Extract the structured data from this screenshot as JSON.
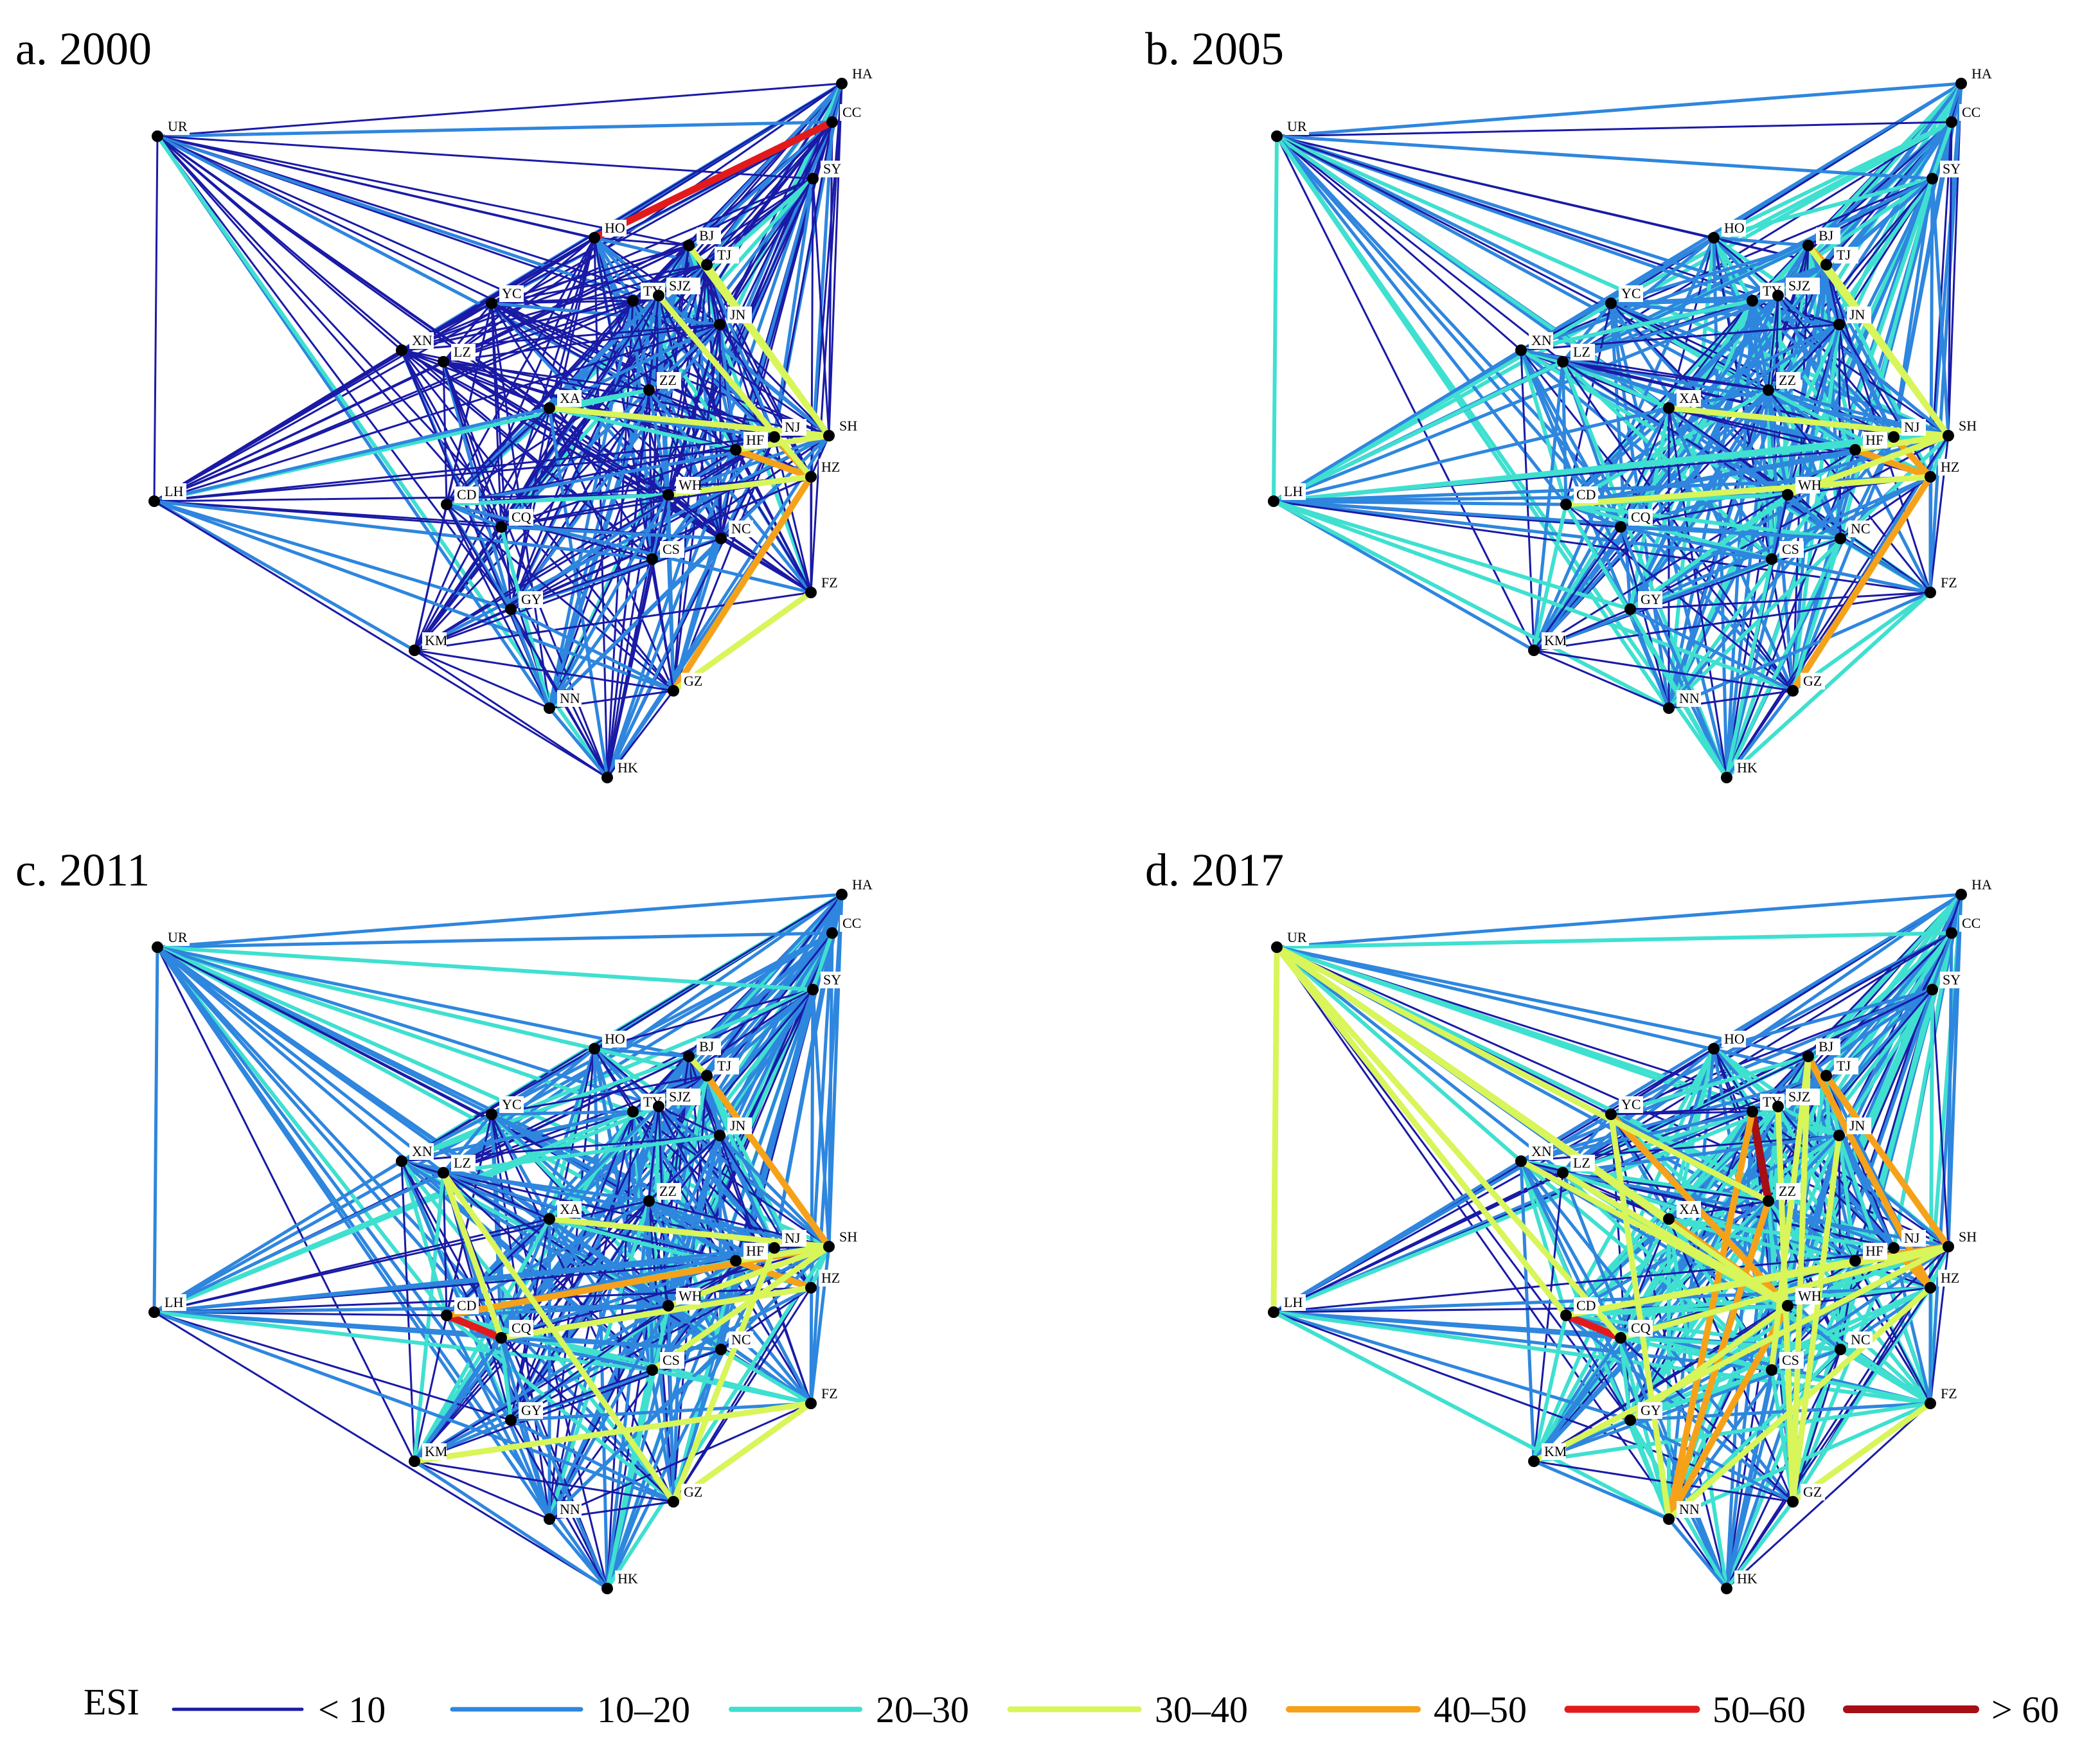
{
  "figure": {
    "legend": {
      "title": "ESI",
      "classes": [
        {
          "label": "< 10",
          "color": "#1a1aa6"
        },
        {
          "label": "10–20",
          "color": "#2e86de"
        },
        {
          "label": "20–30",
          "color": "#3fe0d0"
        },
        {
          "label": "30–40",
          "color": "#d8f55a"
        },
        {
          "label": "40–50",
          "color": "#f5a21a"
        },
        {
          "label": "50–60",
          "color": "#e31a1c"
        },
        {
          "label": "> 60",
          "color": "#a50f15"
        }
      ]
    },
    "nodes": [
      "HA",
      "CC",
      "UR",
      "SY",
      "HO",
      "BJ",
      "TJ",
      "YC",
      "TY",
      "SJZ",
      "JN",
      "XN",
      "LZ",
      "ZZ",
      "XA",
      "HF",
      "NJ",
      "SH",
      "LH",
      "HZ",
      "CD",
      "WH",
      "CQ",
      "NC",
      "CS",
      "FZ",
      "GY",
      "KM",
      "GZ",
      "NN",
      "HK"
    ],
    "panels": [
      {
        "title": "a. 2000",
        "highlight_edges": [
          {
            "from": "HO",
            "to": "CC",
            "class": 5
          },
          {
            "from": "HF",
            "to": "HZ",
            "class": 4
          },
          {
            "from": "NJ",
            "to": "HZ",
            "class": 4
          },
          {
            "from": "HZ",
            "to": "GZ",
            "class": 4
          },
          {
            "from": "HF",
            "to": "SH",
            "class": 3
          },
          {
            "from": "XA",
            "to": "SH",
            "class": 3
          },
          {
            "from": "BJ",
            "to": "SH",
            "class": 3
          },
          {
            "from": "TJ",
            "to": "SH",
            "class": 3
          },
          {
            "from": "WH",
            "to": "HZ",
            "class": 3
          },
          {
            "from": "GZ",
            "to": "FZ",
            "class": 3
          },
          {
            "from": "SJZ",
            "to": "HZ",
            "class": 3
          }
        ]
      },
      {
        "title": "b. 2005",
        "highlight_edges": [
          {
            "from": "HZ",
            "to": "GZ",
            "class": 4
          },
          {
            "from": "HF",
            "to": "HZ",
            "class": 4
          },
          {
            "from": "NJ",
            "to": "HZ",
            "class": 4
          },
          {
            "from": "BJ",
            "to": "TJ",
            "class": 4
          },
          {
            "from": "CD",
            "to": "HZ",
            "class": 3
          },
          {
            "from": "TJ",
            "to": "SH",
            "class": 3
          },
          {
            "from": "BJ",
            "to": "SH",
            "class": 3
          },
          {
            "from": "XA",
            "to": "SH",
            "class": 3
          },
          {
            "from": "HF",
            "to": "SH",
            "class": 3
          },
          {
            "from": "WH",
            "to": "SH",
            "class": 3
          }
        ]
      },
      {
        "title": "c. 2011",
        "highlight_edges": [
          {
            "from": "CD",
            "to": "CQ",
            "class": 5
          },
          {
            "from": "TJ",
            "to": "SH",
            "class": 4
          },
          {
            "from": "CD",
            "to": "SH",
            "class": 4
          },
          {
            "from": "HF",
            "to": "HZ",
            "class": 4
          },
          {
            "from": "BJ",
            "to": "TJ",
            "class": 3
          },
          {
            "from": "HF",
            "to": "SH",
            "class": 3
          },
          {
            "from": "CQ",
            "to": "HZ",
            "class": 3
          },
          {
            "from": "KM",
            "to": "FZ",
            "class": 3
          },
          {
            "from": "GZ",
            "to": "FZ",
            "class": 3
          },
          {
            "from": "LZ",
            "to": "GZ",
            "class": 3
          },
          {
            "from": "CS",
            "to": "SH",
            "class": 3
          },
          {
            "from": "WH",
            "to": "SH",
            "class": 3
          },
          {
            "from": "XA",
            "to": "SH",
            "class": 3
          },
          {
            "from": "NJ",
            "to": "GZ",
            "class": 3
          },
          {
            "from": "LZ",
            "to": "CQ",
            "class": 3
          }
        ]
      },
      {
        "title": "d. 2017",
        "highlight_edges": [
          {
            "from": "TY",
            "to": "ZZ",
            "class": 6
          },
          {
            "from": "CD",
            "to": "CQ",
            "class": 5
          },
          {
            "from": "ZZ",
            "to": "NN",
            "class": 4
          },
          {
            "from": "TY",
            "to": "NN",
            "class": 4
          },
          {
            "from": "BJ",
            "to": "HZ",
            "class": 4
          },
          {
            "from": "TJ",
            "to": "SH",
            "class": 4
          },
          {
            "from": "YC",
            "to": "WH",
            "class": 4
          },
          {
            "from": "XA",
            "to": "WH",
            "class": 4
          },
          {
            "from": "HF",
            "to": "SH",
            "class": 4
          },
          {
            "from": "NJ",
            "to": "HZ",
            "class": 4
          },
          {
            "from": "WH",
            "to": "NN",
            "class": 4
          },
          {
            "from": "CD",
            "to": "SH",
            "class": 3
          },
          {
            "from": "UR",
            "to": "LH",
            "class": 3
          },
          {
            "from": "UR",
            "to": "WH",
            "class": 3
          },
          {
            "from": "UR",
            "to": "ZZ",
            "class": 3
          },
          {
            "from": "UR",
            "to": "CD",
            "class": 3
          },
          {
            "from": "UR",
            "to": "XA",
            "class": 3
          },
          {
            "from": "UR",
            "to": "CQ",
            "class": 3
          },
          {
            "from": "KM",
            "to": "SH",
            "class": 3
          },
          {
            "from": "GY",
            "to": "WH",
            "class": 3
          },
          {
            "from": "GZ",
            "to": "BJ",
            "class": 3
          },
          {
            "from": "NN",
            "to": "HZ",
            "class": 3
          },
          {
            "from": "CQ",
            "to": "SH",
            "class": 3
          },
          {
            "from": "LZ",
            "to": "WH",
            "class": 3
          },
          {
            "from": "XN",
            "to": "WH",
            "class": 3
          },
          {
            "from": "SJZ",
            "to": "GZ",
            "class": 3
          },
          {
            "from": "JN",
            "to": "GZ",
            "class": 3
          },
          {
            "from": "CS",
            "to": "BJ",
            "class": 3
          },
          {
            "from": "HF",
            "to": "CD",
            "class": 3
          },
          {
            "from": "FZ",
            "to": "GZ",
            "class": 3
          },
          {
            "from": "YC",
            "to": "NN",
            "class": 3
          }
        ]
      }
    ]
  }
}
